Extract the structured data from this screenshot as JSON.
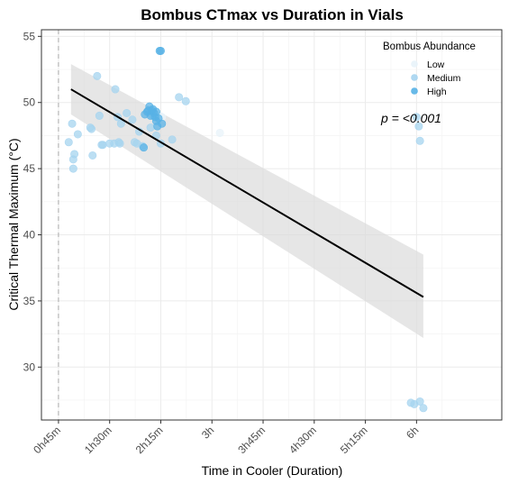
{
  "chart_data": {
    "type": "scatter",
    "title": "Bombus CTmax vs Duration in Vials",
    "xlabel": "Time in Cooler (Duration)",
    "ylabel": "Critical Thermal Maximum (°C)",
    "xlim_minutes": [
      30,
      435
    ],
    "ylim": [
      26,
      55.5
    ],
    "x_ticks": [
      {
        "label": "0h45m",
        "minutes": 45
      },
      {
        "label": "1h30m",
        "minutes": 90
      },
      {
        "label": "2h15m",
        "minutes": 135
      },
      {
        "label": "3h",
        "minutes": 180
      },
      {
        "label": "3h45m",
        "minutes": 225
      },
      {
        "label": "4h30m",
        "minutes": 270
      },
      {
        "label": "5h15m",
        "minutes": 315
      },
      {
        "label": "6h",
        "minutes": 360
      }
    ],
    "y_ticks": [
      30,
      35,
      40,
      45,
      50,
      55
    ],
    "vline_minutes": 45,
    "grid": true,
    "legend": {
      "title": "Bombus Abundance",
      "position": "top-right",
      "items": [
        {
          "label": "Low",
          "color": "#e8f3fa"
        },
        {
          "label": "Medium",
          "color": "#a6d4ef"
        },
        {
          "label": "High",
          "color": "#58b2e6"
        }
      ]
    },
    "annotation": "p = <0.001",
    "fit_line": {
      "x": [
        56,
        366
      ],
      "y": [
        51.0,
        35.3
      ]
    },
    "confidence_band": {
      "x": [
        56,
        366
      ],
      "upper": [
        52.9,
        38.5
      ],
      "lower": [
        49.1,
        32.2
      ]
    },
    "series": [
      {
        "name": "Low",
        "color": "#e8f3fa",
        "points": [
          [
            187,
            47.7
          ],
          [
            136,
            48.9
          ],
          [
            134,
            49.0
          ]
        ]
      },
      {
        "name": "Medium",
        "color": "#a6d4ef",
        "points": [
          [
            54,
            47.0
          ],
          [
            57,
            48.4
          ],
          [
            58,
            45.7
          ],
          [
            58,
            45.0
          ],
          [
            59,
            46.1
          ],
          [
            62,
            47.6
          ],
          [
            73,
            48.1
          ],
          [
            74,
            48.0
          ],
          [
            75,
            46.0
          ],
          [
            79,
            52.0
          ],
          [
            81,
            49.0
          ],
          [
            83,
            46.8
          ],
          [
            84,
            46.8
          ],
          [
            90,
            46.9
          ],
          [
            94,
            46.9
          ],
          [
            95,
            51.0
          ],
          [
            97,
            48.9
          ],
          [
            98,
            47.0
          ],
          [
            99,
            46.9
          ],
          [
            100,
            48.4
          ],
          [
            105,
            49.2
          ],
          [
            110,
            48.7
          ],
          [
            112,
            47.0
          ],
          [
            114,
            46.9
          ],
          [
            116,
            47.8
          ],
          [
            119,
            46.7
          ],
          [
            126,
            48.1
          ],
          [
            128,
            49.0
          ],
          [
            131,
            47.5
          ],
          [
            135,
            46.9
          ],
          [
            145,
            47.2
          ],
          [
            151,
            50.4
          ],
          [
            157,
            50.1
          ],
          [
            360,
            48.9
          ],
          [
            362,
            48.2
          ],
          [
            363,
            47.1
          ],
          [
            355,
            27.3
          ],
          [
            358,
            27.2
          ],
          [
            363,
            27.4
          ],
          [
            366,
            26.9
          ]
        ]
      },
      {
        "name": "High",
        "color": "#58b2e6",
        "points": [
          [
            120,
            46.6
          ],
          [
            121,
            49.1
          ],
          [
            123,
            49.3
          ],
          [
            124,
            49.4
          ],
          [
            125,
            49.7
          ],
          [
            126,
            49.0
          ],
          [
            127,
            49.4
          ],
          [
            128,
            49.5
          ],
          [
            129,
            49.2
          ],
          [
            130,
            48.9
          ],
          [
            131,
            48.6
          ],
          [
            131,
            49.3
          ],
          [
            132,
            48.2
          ],
          [
            133,
            48.8
          ],
          [
            134,
            53.9
          ],
          [
            135,
            53.9
          ],
          [
            136,
            48.4
          ]
        ]
      }
    ]
  }
}
